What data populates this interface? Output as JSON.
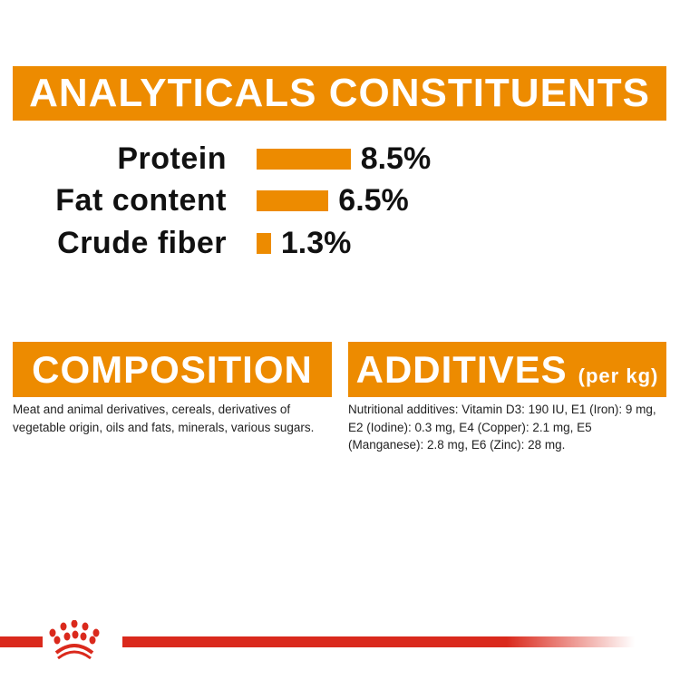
{
  "analyticals": {
    "title": "ANALYTICALS CONSTITUENTS",
    "rows": [
      {
        "label": "Protein",
        "value": 8.5,
        "display": "8.5%"
      },
      {
        "label": "Fat content",
        "value": 6.5,
        "display": "6.5%"
      },
      {
        "label": "Crude fiber",
        "value": 1.3,
        "display": "1.3%"
      }
    ]
  },
  "composition": {
    "title": "COMPOSITION",
    "text": "Meat and animal derivatives, cereals, derivatives of vegetable origin, oils and fats, minerals, various sugars."
  },
  "additives": {
    "title": "ADDITIVES",
    "unit": "(per kg)",
    "text": "Nutritional additives: Vitamin D3: 190 IU, E1 (Iron): 9 mg, E2 (Iodine): 0.3 mg, E4 (Copper): 2.1 mg, E5 (Manganese): 2.8 mg, E6 (Zinc): 28 mg."
  },
  "colors": {
    "accent": "#ED8B00",
    "brand_red": "#DA291C"
  },
  "logo": {
    "name": "crown-logo-icon"
  }
}
